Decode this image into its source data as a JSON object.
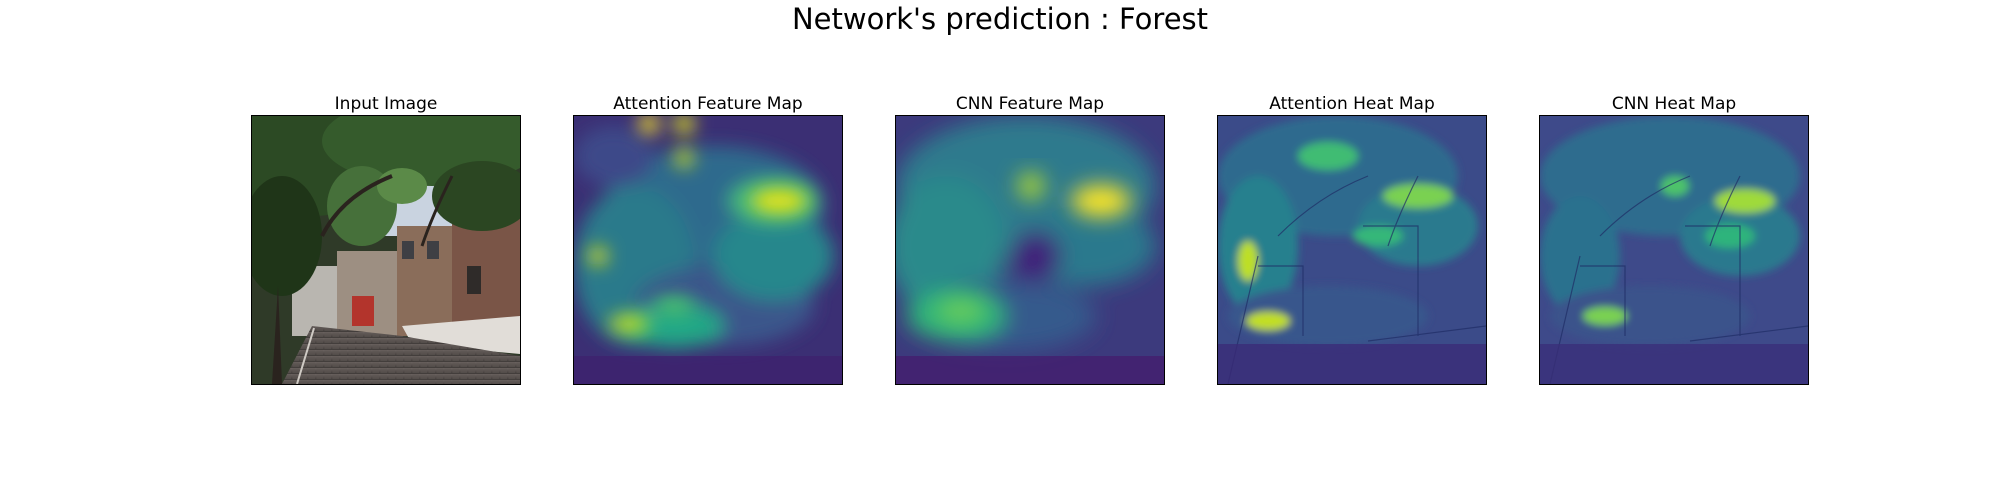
{
  "figure": {
    "title": "Network's prediction : Forest"
  },
  "panels": [
    {
      "title": "Input Image",
      "kind": "photo"
    },
    {
      "title": "Attention Feature Map",
      "kind": "feature-map"
    },
    {
      "title": "CNN Feature Map",
      "kind": "feature-map"
    },
    {
      "title": "Attention Heat Map",
      "kind": "heat-map"
    },
    {
      "title": "CNN Heat Map",
      "kind": "heat-map"
    }
  ],
  "colormap": {
    "name": "viridis",
    "low": "#440154",
    "mid": "#21918c",
    "high": "#fde725"
  }
}
